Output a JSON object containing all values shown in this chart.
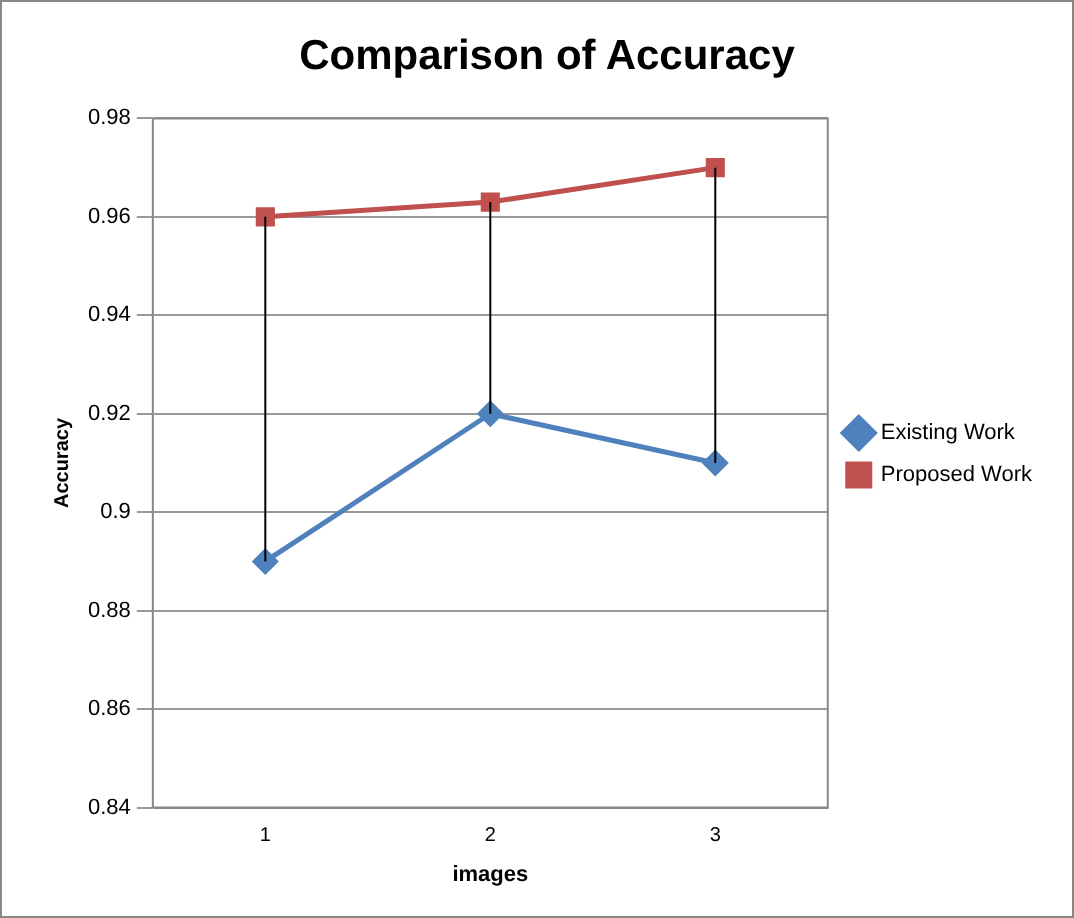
{
  "chart_data": {
    "type": "line",
    "title": "Comparison of Accuracy",
    "xlabel": "images",
    "ylabel": "Accuracy",
    "categories": [
      "1",
      "2",
      "3"
    ],
    "series": [
      {
        "name": "Existing Work",
        "color": "#4f81bd",
        "marker": "diamond",
        "values": [
          0.89,
          0.92,
          0.91
        ],
        "errors": [
          [
            0.89,
            0.96
          ],
          [
            0.92,
            0.963
          ],
          [
            0.91,
            0.97
          ]
        ]
      },
      {
        "name": "Proposed Work",
        "color": "#c0504d",
        "marker": "square",
        "values": [
          0.96,
          0.963,
          0.97
        ]
      }
    ],
    "ylim": [
      0.84,
      0.98
    ],
    "yticks": [
      0.84,
      0.86,
      0.88,
      0.9,
      0.92,
      0.94,
      0.96,
      0.98
    ],
    "grid": "y",
    "legend": "right",
    "line_style": "solid"
  }
}
